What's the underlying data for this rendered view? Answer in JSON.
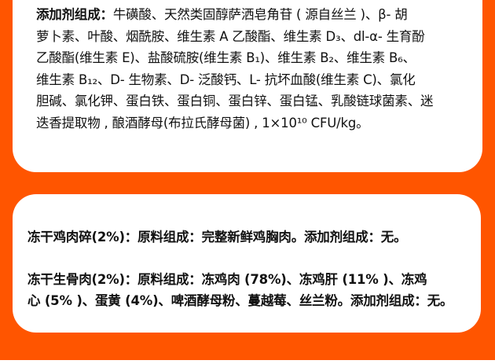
{
  "additives_card": {
    "label": "添加剂组成：",
    "lines": [
      "牛磺酸、天然类固醇萨洒皂角苷 ( 源自丝兰 )、β- 胡",
      "萝卜素、叶酸、烟酰胺、维生素 A 乙酸酯、维生素 D₃、dl-α- 生育酚",
      "乙酸酯(维生素 E)、盐酸硫胺(维生素 B₁)、维生素 B₂、维生素 B₆、",
      "维生素 B₁₂、D- 生物素、D- 泛酸钙、L- 抗坏血酸(维生素 C)、氯化",
      "胆碱、氯化钾、蛋白铁、蛋白铜、蛋白锌、蛋白锰、乳酸链球菌素、迷",
      "迭香提取物 , 酿酒酵母(布拉氏酵母菌) , 1×10¹⁰ CFU/kg。"
    ]
  },
  "freeze_dried_card": {
    "chicken_bits": "冻干鸡肉碎(2%)：原料组成：完整新鲜鸡胸肉。添加剂组成：无。",
    "raw_bone_meat": [
      "冻干生骨肉(2%)：原料组成：冻鸡肉 (78%)、冻鸡肝 (11% )、冻鸡",
      "心 (5% )、蛋黄 (4%)、啤酒酵母粉、蔓越莓、丝兰粉。添加剂组成：无。"
    ]
  },
  "colors": {
    "background": "#ff5500",
    "card": "#ffffff",
    "text": "#111111"
  }
}
